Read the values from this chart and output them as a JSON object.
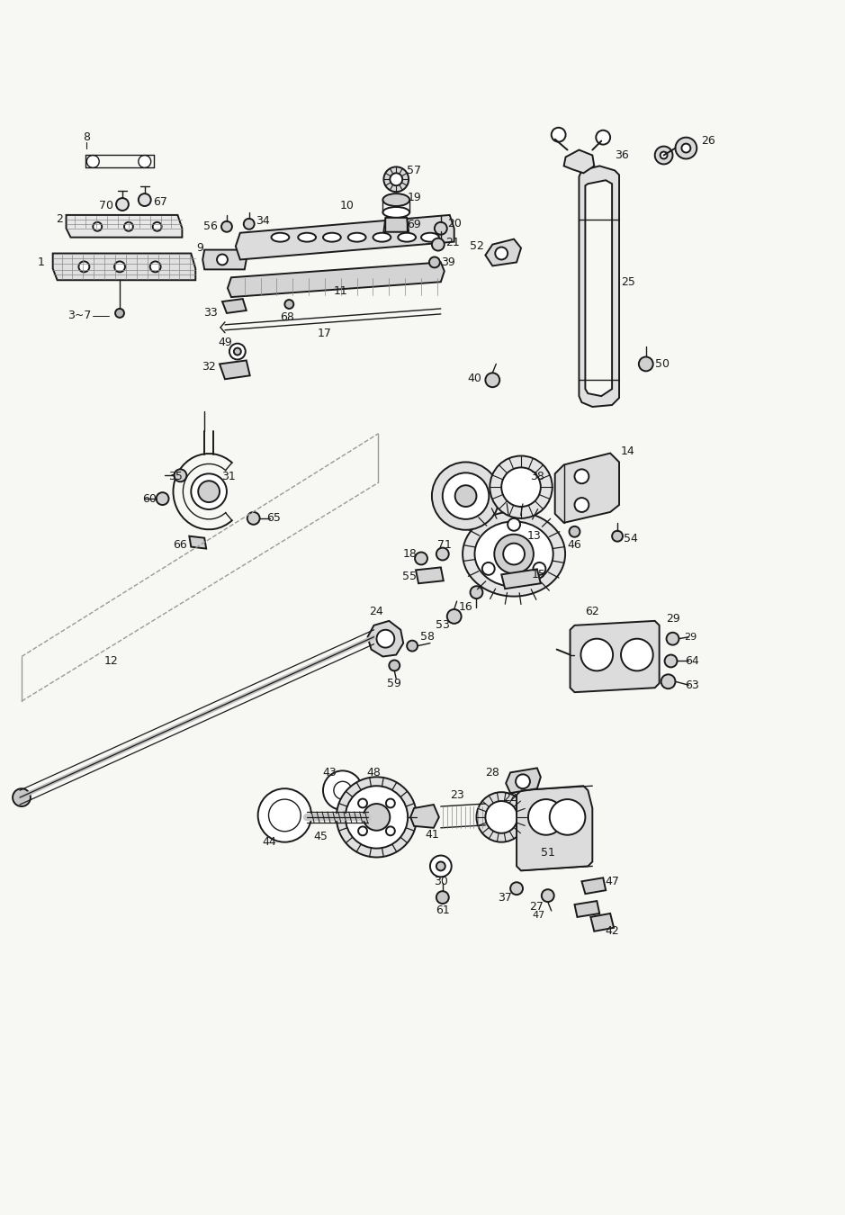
{
  "bg_color": "#f7f7f4",
  "line_color": "#1a1a1a",
  "text_color": "#1a1a1a",
  "figsize": [
    9.39,
    13.5
  ],
  "dpi": 100
}
